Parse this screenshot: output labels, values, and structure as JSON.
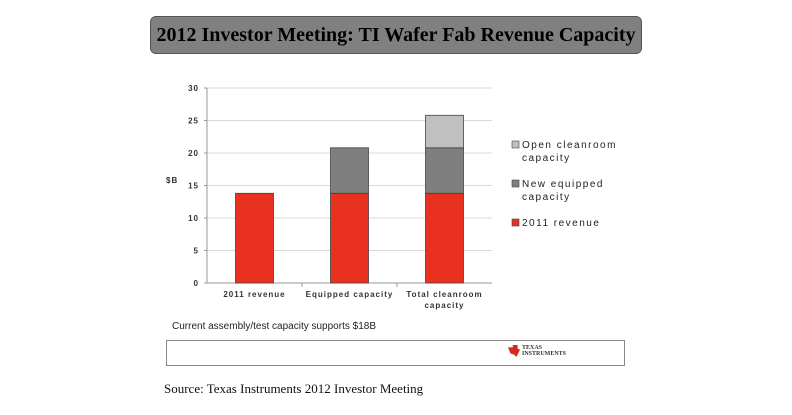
{
  "title": "2012 Investor Meeting: TI Wafer Fab Revenue Capacity",
  "chart_data": {
    "type": "bar",
    "stacked": true,
    "categories": [
      "2011 revenue",
      "Equipped capacity",
      "Total cleanroom capacity"
    ],
    "category_lines": [
      [
        "2011 revenue"
      ],
      [
        "Equipped capacity"
      ],
      [
        "Total cleanroom",
        "capacity"
      ]
    ],
    "series": [
      {
        "name": "2011 revenue",
        "legend_lines": [
          "2011 revenue"
        ],
        "color": "#e8321f",
        "values": [
          13.8,
          13.8,
          13.8
        ]
      },
      {
        "name": "New equipped capacity",
        "legend_lines": [
          "New equipped",
          "capacity"
        ],
        "color": "#7f7f7f",
        "values": [
          0,
          7.0,
          7.0
        ]
      },
      {
        "name": "Open cleanroom capacity",
        "legend_lines": [
          "Open cleanroom",
          "capacity"
        ],
        "color": "#c0c0c0",
        "values": [
          0,
          0,
          5.0
        ]
      }
    ],
    "ylabel": "$B",
    "ylim": [
      0,
      30
    ],
    "yticks": [
      0,
      5,
      10,
      15,
      20,
      25,
      30
    ],
    "grid": true,
    "legend": "right"
  },
  "note": "Current assembly/test capacity supports $18B",
  "logo_text": "Texas Instruments",
  "source": "Source: Texas Instruments 2012 Investor Meeting"
}
